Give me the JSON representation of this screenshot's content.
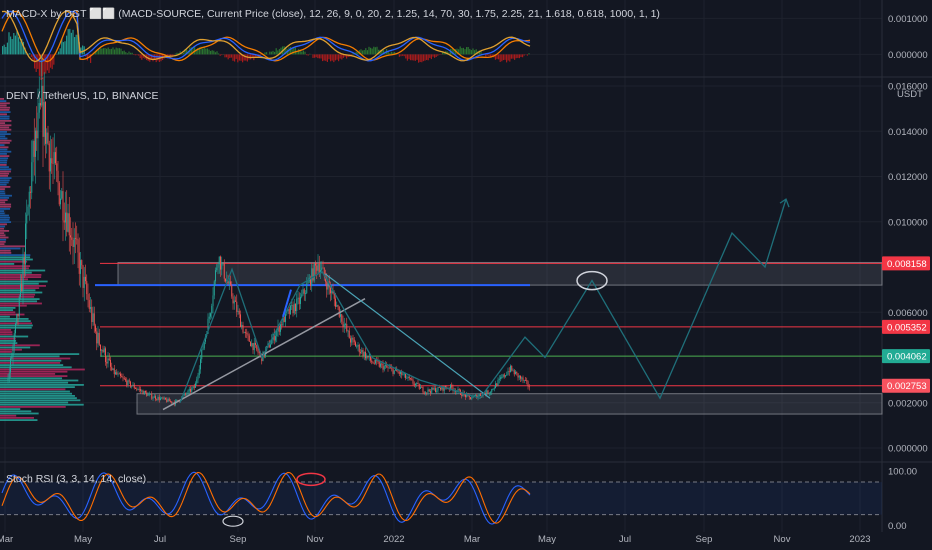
{
  "panels": {
    "macd_title": "MACD-X by DGT ⬜⬜ (MACD-SOURCE, Current Price (close), 12, 26, 9, 0, 20, 2, 1.25, 14, 70, 30, 1.75, 2.25, 21, 1.618, 0.618, 1000, 1, 1)",
    "main_title": "DENT / TetherUS, 1D, BINANCE",
    "rsi_title": "Stoch RSI (3, 3, 14, 14, close)",
    "currency": "USDT"
  },
  "colors": {
    "background": "#131722",
    "grid": "#1e222d",
    "axis_text": "#b2b5be",
    "resistance": "#f23645",
    "support_green": "#26a69a",
    "line_green": "#4caf50",
    "blue_line": "#2962ff",
    "projection": "#1f6f7a",
    "up_candle": "#26a69a",
    "down_candle": "#ef5350",
    "tag_red": "#f23645",
    "tag_green": "#22ab94",
    "tag_orange": "#f7525f"
  },
  "chart_data": [
    {
      "type": "line",
      "name": "macd",
      "ylim": [
        -0.0006,
        0.0014
      ],
      "y_ticks": [
        "0.001000",
        "0.000000"
      ],
      "y_tick_values": [
        0.001,
        0.0
      ]
    },
    {
      "type": "candlestick",
      "name": "price",
      "x_ticks": [
        "Mar",
        "May",
        "Jul",
        "Sep",
        "Nov",
        "2022",
        "Mar",
        "May",
        "Jul",
        "Sep",
        "Nov",
        "2023"
      ],
      "y_ticks": [
        "0.016000",
        "0.014000",
        "0.012000",
        "0.010000",
        "0.006000",
        "0.002000",
        "0.000000"
      ],
      "y_tick_values": [
        0.016,
        0.014,
        0.012,
        0.01,
        0.006,
        0.002,
        0.0
      ],
      "ylim": [
        0.0,
        0.016
      ],
      "price_tags": [
        {
          "label": "0.008158",
          "value": 0.008158,
          "kind": "red"
        },
        {
          "label": "0.005352",
          "value": 0.005352,
          "kind": "red"
        },
        {
          "label": "0.004062",
          "value": 0.004062,
          "kind": "green"
        },
        {
          "label": "0.002753",
          "value": 0.002753,
          "kind": "orange"
        }
      ],
      "levels": [
        {
          "value": 0.008158,
          "color": "red"
        },
        {
          "value": 0.0072,
          "color": "blue"
        },
        {
          "value": 0.005352,
          "color": "red"
        },
        {
          "value": 0.004062,
          "color": "green"
        },
        {
          "value": 0.002753,
          "color": "red"
        }
      ],
      "zones": [
        {
          "from": 0.0072,
          "to": 0.0082
        },
        {
          "from": 0.0015,
          "to": 0.0024
        }
      ]
    },
    {
      "type": "line",
      "name": "stoch_rsi",
      "ylim": [
        -10,
        115
      ],
      "y_ticks": [
        "100.00",
        "0.00"
      ],
      "y_tick_values": [
        100,
        0
      ],
      "bands": [
        80,
        20
      ]
    }
  ]
}
